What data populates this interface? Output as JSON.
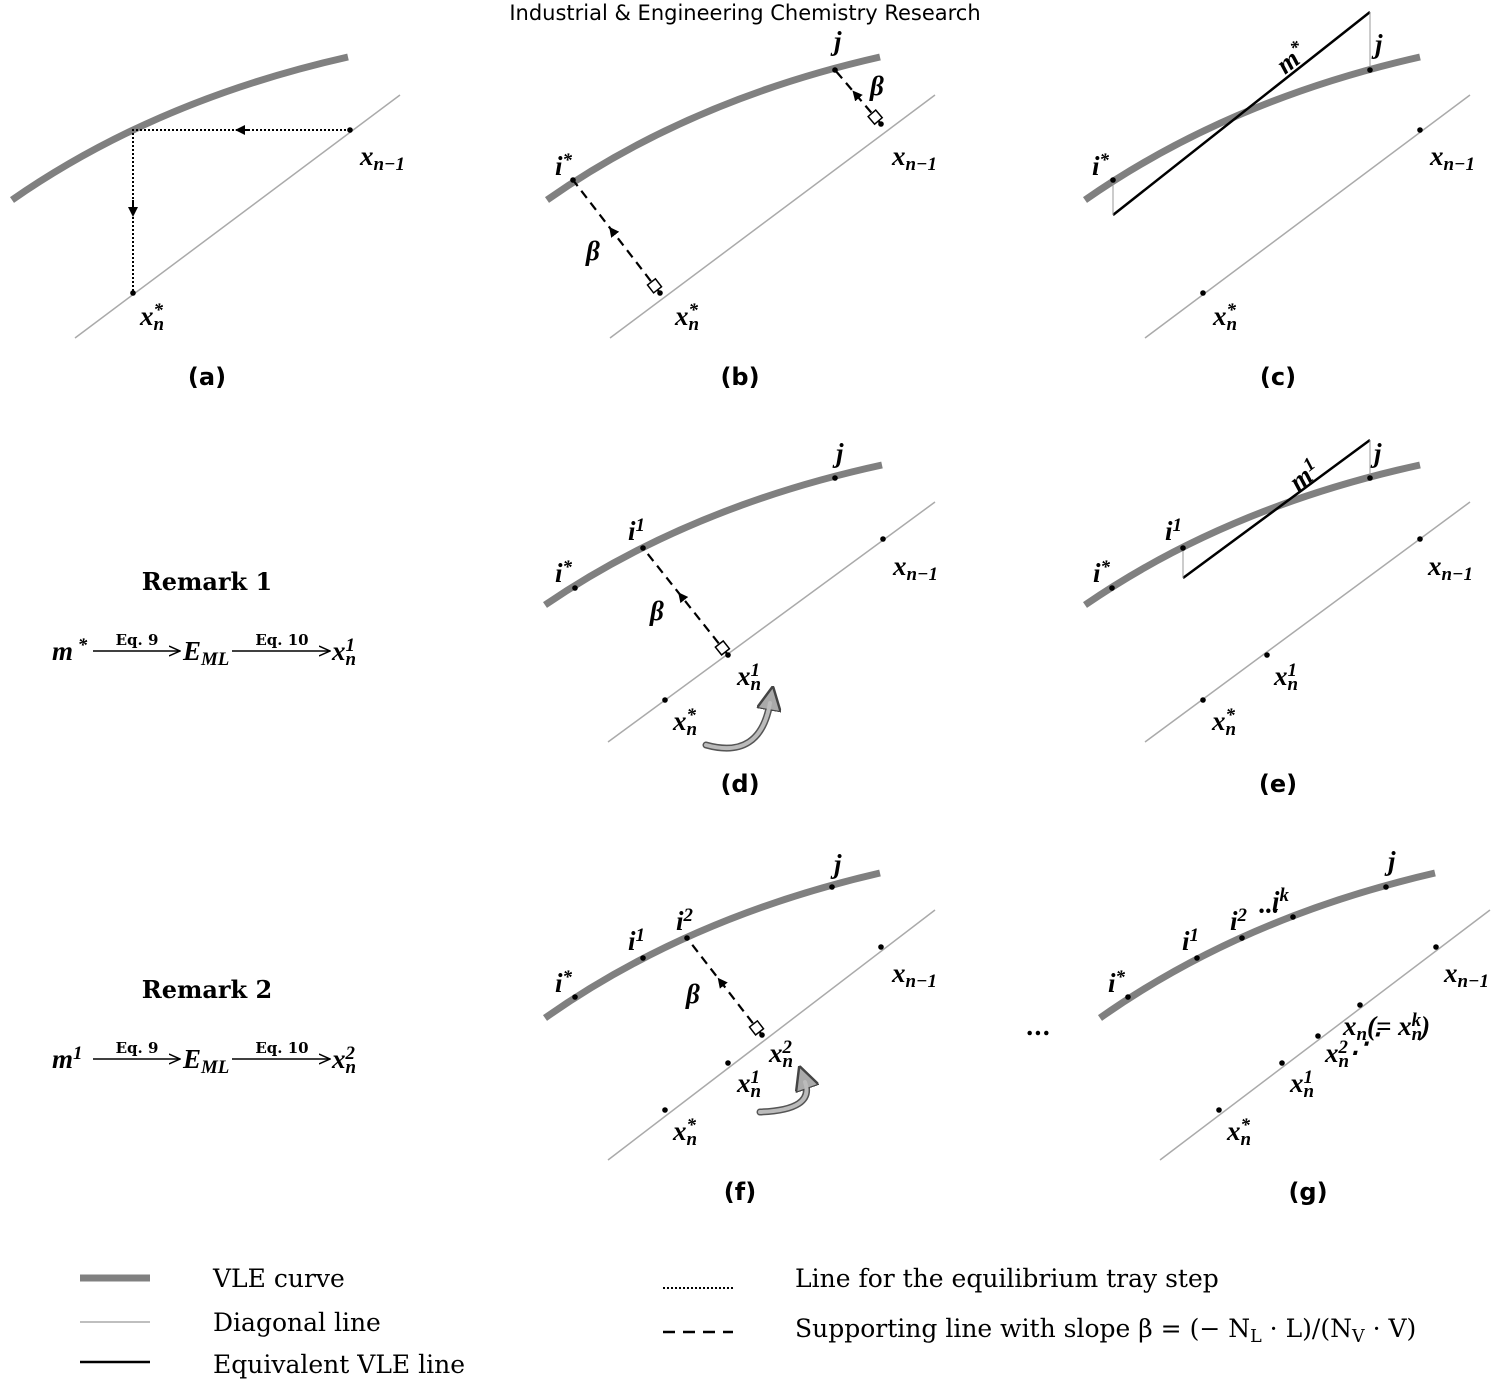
{
  "header": {
    "title": "Industrial & Engineering Chemistry Research"
  },
  "panels": [
    {
      "caption": "(a)",
      "labels": [
        {
          "parts": [
            {
              "t": "x"
            },
            {
              "sub": "n−1"
            }
          ]
        },
        {
          "parts": [
            {
              "t": "x"
            },
            {
              "sub": "n"
            },
            {
              "sup": "*"
            }
          ]
        }
      ]
    },
    {
      "caption": "(b)",
      "labels": [
        {
          "parts": [
            {
              "t": "j"
            }
          ]
        },
        {
          "parts": [
            {
              "t": "β"
            }
          ]
        },
        {
          "parts": [
            {
              "t": "i"
            },
            {
              "sup": "*"
            }
          ]
        },
        {
          "parts": [
            {
              "t": "β"
            }
          ]
        },
        {
          "parts": [
            {
              "t": "x"
            },
            {
              "sub": "n−1"
            }
          ]
        },
        {
          "parts": [
            {
              "t": "x"
            },
            {
              "sub": "n"
            },
            {
              "sup": "*"
            }
          ]
        }
      ]
    },
    {
      "caption": "(c)",
      "labels": [
        {
          "parts": [
            {
              "t": "m"
            },
            {
              "sup": "*"
            }
          ]
        },
        {
          "parts": [
            {
              "t": "j"
            }
          ]
        },
        {
          "parts": [
            {
              "t": "i"
            },
            {
              "sup": "*"
            }
          ]
        },
        {
          "parts": [
            {
              "t": "x"
            },
            {
              "sub": "n−1"
            }
          ]
        },
        {
          "parts": [
            {
              "t": "x"
            },
            {
              "sub": "n"
            },
            {
              "sup": "*"
            }
          ]
        }
      ]
    },
    {
      "caption": "(d)",
      "labels": [
        {
          "parts": [
            {
              "t": "j"
            }
          ]
        },
        {
          "parts": [
            {
              "t": "i"
            },
            {
              "sup": "1"
            }
          ]
        },
        {
          "parts": [
            {
              "t": "i"
            },
            {
              "sup": "*"
            }
          ]
        },
        {
          "parts": [
            {
              "t": "β"
            }
          ]
        },
        {
          "parts": [
            {
              "t": "x"
            },
            {
              "sub": "n−1"
            }
          ]
        },
        {
          "parts": [
            {
              "t": "x"
            },
            {
              "sub": "n"
            },
            {
              "sup": "1"
            }
          ]
        },
        {
          "parts": [
            {
              "t": "x"
            },
            {
              "sub": "n"
            },
            {
              "sup": "*"
            }
          ]
        }
      ]
    },
    {
      "caption": "(e)",
      "labels": [
        {
          "parts": [
            {
              "t": "m"
            },
            {
              "sup": "1"
            }
          ]
        },
        {
          "parts": [
            {
              "t": "j"
            }
          ]
        },
        {
          "parts": [
            {
              "t": "i"
            },
            {
              "sup": "1"
            }
          ]
        },
        {
          "parts": [
            {
              "t": "i"
            },
            {
              "sup": "*"
            }
          ]
        },
        {
          "parts": [
            {
              "t": "x"
            },
            {
              "sub": "n−1"
            }
          ]
        },
        {
          "parts": [
            {
              "t": "x"
            },
            {
              "sub": "n"
            },
            {
              "sup": "1"
            }
          ]
        },
        {
          "parts": [
            {
              "t": "x"
            },
            {
              "sub": "n"
            },
            {
              "sup": "*"
            }
          ]
        }
      ]
    },
    {
      "caption": "(f)",
      "labels": [
        {
          "parts": [
            {
              "t": "j"
            }
          ]
        },
        {
          "parts": [
            {
              "t": "i"
            },
            {
              "sup": "2"
            }
          ]
        },
        {
          "parts": [
            {
              "t": "i"
            },
            {
              "sup": "1"
            }
          ]
        },
        {
          "parts": [
            {
              "t": "i"
            },
            {
              "sup": "*"
            }
          ]
        },
        {
          "parts": [
            {
              "t": "β"
            }
          ]
        },
        {
          "parts": [
            {
              "t": "x"
            },
            {
              "sub": "n−1"
            }
          ]
        },
        {
          "parts": [
            {
              "t": "x"
            },
            {
              "sub": "n"
            },
            {
              "sup": "2"
            }
          ]
        },
        {
          "parts": [
            {
              "t": "x"
            },
            {
              "sub": "n"
            },
            {
              "sup": "1"
            }
          ]
        },
        {
          "parts": [
            {
              "t": "x"
            },
            {
              "sub": "n"
            },
            {
              "sup": "*"
            }
          ]
        }
      ]
    },
    {
      "caption": "(g)",
      "labels": [
        {
          "parts": [
            {
              "t": "j"
            }
          ]
        },
        {
          "parts": [
            {
              "t": "i"
            },
            {
              "sup": "2"
            }
          ]
        },
        {
          "parts": [
            {
              "t": "···"
            }
          ]
        },
        {
          "parts": [
            {
              "t": "i"
            },
            {
              "sup": "k"
            }
          ]
        },
        {
          "parts": [
            {
              "t": "i"
            },
            {
              "sup": "1"
            }
          ]
        },
        {
          "parts": [
            {
              "t": "i"
            },
            {
              "sup": "*"
            }
          ]
        },
        {
          "parts": [
            {
              "t": "x"
            },
            {
              "sub": "n−1"
            }
          ]
        },
        {
          "parts": [
            {
              "t": "x"
            },
            {
              "sub": "n"
            },
            {
              "t": "(= "
            },
            {
              "t": "x"
            },
            {
              "sub": "n"
            },
            {
              "sup": "k"
            },
            {
              "t": ")"
            }
          ]
        },
        {
          "parts": [
            {
              "t": "⋰"
            }
          ]
        },
        {
          "parts": [
            {
              "t": "x"
            },
            {
              "sub": "n"
            },
            {
              "sup": "2"
            }
          ]
        },
        {
          "parts": [
            {
              "t": "x"
            },
            {
              "sub": "n"
            },
            {
              "sup": "1"
            }
          ]
        },
        {
          "parts": [
            {
              "t": "x"
            },
            {
              "sub": "n"
            },
            {
              "sup": "*"
            }
          ]
        }
      ]
    }
  ],
  "ellipsis": "...",
  "remarks": [
    {
      "title": "Remark 1",
      "from": {
        "parts": [
          {
            "t": "m"
          },
          {
            "sup": " *"
          }
        ]
      },
      "step1": "Eq. 9",
      "mid": {
        "parts": [
          {
            "t": "E"
          },
          {
            "sub": "ML"
          }
        ]
      },
      "step2": "Eq. 10",
      "to": {
        "parts": [
          {
            "t": "x"
          },
          {
            "sub": "n"
          },
          {
            "sup": "1"
          }
        ]
      }
    },
    {
      "title": "Remark 2",
      "from": {
        "parts": [
          {
            "t": "m"
          },
          {
            "sup": "1"
          }
        ]
      },
      "step1": "Eq. 9",
      "mid": {
        "parts": [
          {
            "t": "E"
          },
          {
            "sub": "ML"
          }
        ]
      },
      "step2": "Eq. 10",
      "to": {
        "parts": [
          {
            "t": "x"
          },
          {
            "sub": "n"
          },
          {
            "sup": "2"
          }
        ]
      }
    }
  ],
  "legend": [
    {
      "label": {
        "parts": [
          {
            "t": "VLE curve"
          }
        ]
      }
    },
    {
      "label": {
        "parts": [
          {
            "t": "Diagonal line"
          }
        ]
      }
    },
    {
      "label": {
        "parts": [
          {
            "t": "Equivalent VLE line"
          }
        ]
      }
    },
    {
      "label": {
        "parts": [
          {
            "t": "Line for the equilibrium tray step"
          }
        ]
      }
    },
    {
      "label": {
        "parts": [
          {
            "t": "Supporting line with slope "
          },
          {
            "t": "β"
          },
          {
            "t": " = "
          },
          {
            "t": "(− N"
          },
          {
            "sub": "L"
          },
          {
            "t": " · L)/(N"
          },
          {
            "sub": "V"
          },
          {
            "t": " · V)"
          }
        ]
      }
    }
  ]
}
